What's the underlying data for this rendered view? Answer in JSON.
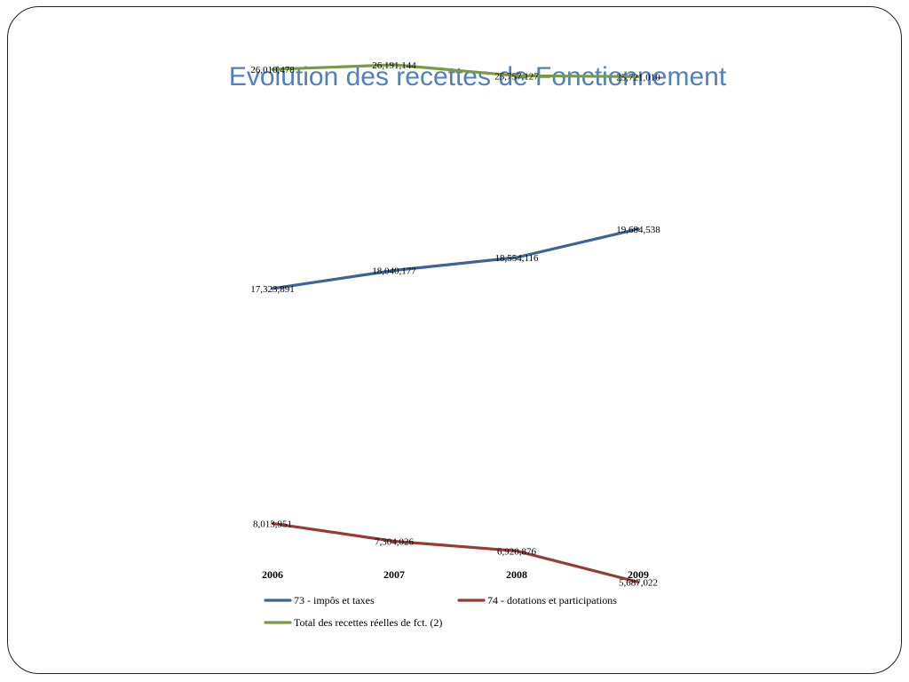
{
  "slide": {
    "title": "Evolution des recettes de Fonctionnement"
  },
  "chart_data": {
    "type": "line",
    "categories": [
      "2006",
      "2007",
      "2008",
      "2009"
    ],
    "ylim": [
      5000000,
      27000000
    ],
    "grid": false,
    "legend_position": "bottom",
    "series": [
      {
        "name": "73 - impôs et taxes",
        "color": "#3c6499",
        "values": [
          17323891,
          18040177,
          18554116,
          19684538
        ],
        "labels": [
          "17,323,891",
          "18,040,177",
          "18,554,116",
          "19,684,538"
        ]
      },
      {
        "name": "74 - dotations et participations",
        "color": "#983a36",
        "values": [
          8013951,
          7304026,
          6920876,
          5687022
        ],
        "labels": [
          "8,013,951",
          "7,304,026",
          "6,920,876",
          "5,687,022"
        ]
      },
      {
        "name": "Total des recettes réelles de fct. (2)",
        "color": "#7a9a46",
        "values": [
          26010478,
          26191144,
          25757127,
          25721010
        ],
        "labels": [
          "26,010,478",
          "26,191,144",
          "25,757,127",
          "25,721,010"
        ]
      }
    ]
  }
}
